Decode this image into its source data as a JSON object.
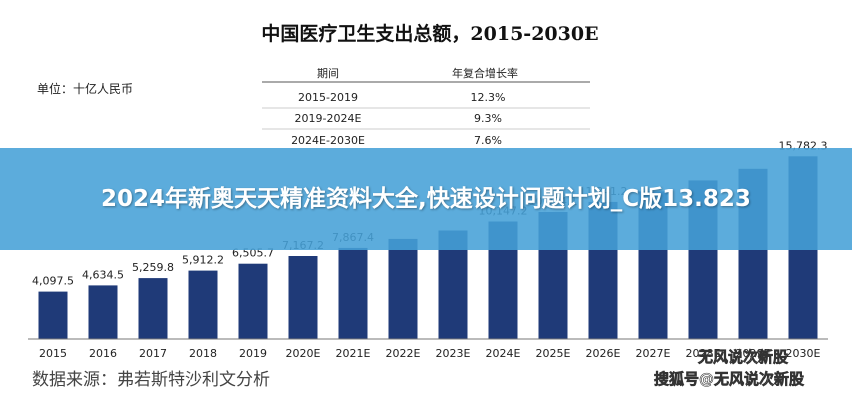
{
  "chart_data": {
    "type": "bar",
    "title": "中国医疗卫生支出总额，2015-2030E",
    "unit_label": "单位：十亿人民币",
    "categories": [
      "2015",
      "2016",
      "2017",
      "2018",
      "2019",
      "2020E",
      "2021E",
      "2022E",
      "2023E",
      "2024E",
      "2025E",
      "2026E",
      "2027E",
      "2028E",
      "2029E",
      "2030E"
    ],
    "values": [
      4097.5,
      4634.5,
      5259.8,
      5912.2,
      6505.7,
      7167.2,
      7867.4,
      8649.0,
      9370.0,
      10147.2,
      10974.1,
      11841.2,
      12750.0,
      13700.0,
      14700.0,
      15782.3
    ],
    "value_labels": [
      "4,097.5",
      "4,634.5",
      "5,259.8",
      "5,912.2",
      "6,505.7",
      "7,167.2",
      "7,867.4",
      "",
      "",
      "10,147.2",
      "10,974.1",
      "11,841.2",
      "",
      "",
      "",
      "15,782.3"
    ],
    "bar_color": "#1f3a78",
    "ylim": [
      0,
      16500
    ],
    "grid": false,
    "cagr_table": {
      "headers": [
        "期间",
        "年复合增长率"
      ],
      "rows": [
        [
          "2015-2019",
          "12.3%"
        ],
        [
          "2019-2024E",
          "9.3%"
        ],
        [
          "2024E-2030E",
          "7.6%"
        ]
      ]
    },
    "source": "数据来源：弗若斯特沙利文分析"
  },
  "overlay": {
    "banner_text": "2024年新奥天天精准资料大全,快速设计问题计划_C版13.823",
    "banner_color": "#46a0d7",
    "watermark_line1": "无风说次新股",
    "watermark_line2": "搜狐号@无风说次新股"
  }
}
